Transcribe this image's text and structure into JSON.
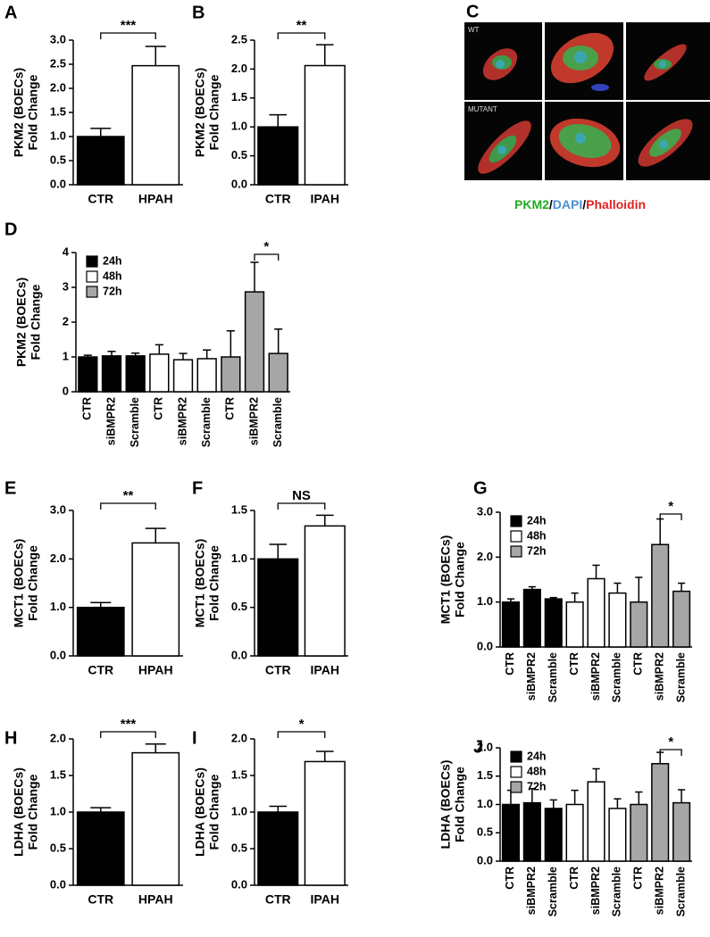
{
  "chart_data": [
    {
      "type": "bar",
      "label": "A",
      "ylabel": [
        "PKM2 (BOECs)",
        "Fold Change"
      ],
      "categories": [
        "CTR",
        "HPAH"
      ],
      "values": [
        1.0,
        2.47
      ],
      "errors": [
        0.17,
        0.4
      ],
      "colors": [
        "#000000",
        "#ffffff"
      ],
      "ylim": [
        0,
        3
      ],
      "yticks": [
        {
          "value": 0,
          "label": "0.0"
        },
        0.5,
        {
          "value": 1,
          "label": "1.0"
        },
        1.5,
        {
          "value": 2,
          "label": "2.0"
        },
        2.5,
        {
          "value": 3,
          "label": "3.0"
        }
      ],
      "significance": "***"
    },
    {
      "type": "bar",
      "label": "B",
      "ylabel": [
        "PKM2 (BOECs)",
        "Fold Change"
      ],
      "categories": [
        "CTR",
        "IPAH"
      ],
      "values": [
        1.0,
        2.06
      ],
      "errors": [
        0.21,
        0.36
      ],
      "colors": [
        "#000000",
        "#ffffff"
      ],
      "ylim": [
        0,
        2.5
      ],
      "yticks": [
        {
          "value": 0,
          "label": "0.0"
        },
        0.5,
        {
          "value": 1,
          "label": "1.0"
        },
        1.5,
        {
          "value": 2,
          "label": "2.0"
        },
        2.5
      ],
      "significance": "**"
    },
    {
      "type": "bar",
      "label": "D",
      "ylabel": [
        "PKM2 (BOECs)",
        "Fold Change"
      ],
      "categories": [
        "CTR",
        "siBMPR2",
        "Scramble",
        "CTR",
        "siBMPR2",
        "Scramble",
        "CTR",
        "siBMPR2",
        "Scramble"
      ],
      "series": [
        {
          "name": "24h",
          "color": "#000000",
          "values": [
            1.0,
            1.03,
            1.03,
            null,
            null,
            null,
            null,
            null,
            null
          ],
          "errors": [
            0.05,
            0.13,
            0.08,
            null,
            null,
            null,
            null,
            null,
            null
          ]
        },
        {
          "name": "48h",
          "color": "#ffffff",
          "values": [
            null,
            null,
            null,
            1.08,
            0.92,
            0.95,
            null,
            null,
            null
          ],
          "errors": [
            null,
            null,
            null,
            0.27,
            0.18,
            0.25,
            null,
            null,
            null
          ]
        },
        {
          "name": "72h",
          "color": "#a6a6a6",
          "values": [
            null,
            null,
            null,
            null,
            null,
            null,
            1.0,
            2.87,
            1.1
          ],
          "errors": [
            null,
            null,
            null,
            null,
            null,
            null,
            0.75,
            0.85,
            0.7
          ]
        }
      ],
      "legend": "upper left",
      "ylim": [
        0,
        4
      ],
      "yticks": [
        0,
        1,
        2,
        3,
        4
      ],
      "significance": "*"
    },
    {
      "type": "bar",
      "label": "E",
      "ylabel": [
        "MCT1 (BOECs)",
        "Fold Change"
      ],
      "categories": [
        "CTR",
        "HPAH"
      ],
      "values": [
        1.0,
        2.33
      ],
      "errors": [
        0.1,
        0.3
      ],
      "colors": [
        "#000000",
        "#ffffff"
      ],
      "ylim": [
        0,
        3
      ],
      "yticks": [
        {
          "value": 0,
          "label": "0.0"
        },
        {
          "value": 1,
          "label": "1.0"
        },
        {
          "value": 2,
          "label": "2.0"
        },
        {
          "value": 3,
          "label": "3.0"
        }
      ],
      "significance": "**"
    },
    {
      "type": "bar",
      "label": "F",
      "ylabel": [
        "MCT1 (BOECs)",
        "Fold Change"
      ],
      "categories": [
        "CTR",
        "IPAH"
      ],
      "values": [
        1.0,
        1.34
      ],
      "errors": [
        0.15,
        0.11
      ],
      "colors": [
        "#000000",
        "#ffffff"
      ],
      "ylim": [
        0,
        1.5
      ],
      "yticks": [
        {
          "value": 0,
          "label": "0.0"
        },
        0.5,
        {
          "value": 1,
          "label": "1.0"
        },
        1.5
      ],
      "significance": "NS"
    },
    {
      "type": "bar",
      "label": "G",
      "ylabel": [
        "MCT1 (BOECs)",
        "Fold Change"
      ],
      "categories": [
        "CTR",
        "siBMPR2",
        "Scramble",
        "CTR",
        "siBMPR2",
        "Scramble",
        "CTR",
        "siBMPR2",
        "Scramble"
      ],
      "series": [
        {
          "name": "24h",
          "color": "#000000",
          "values": [
            1.0,
            1.28,
            1.07,
            null,
            null,
            null,
            null,
            null,
            null
          ],
          "errors": [
            0.07,
            0.06,
            0.03,
            null,
            null,
            null,
            null,
            null,
            null
          ]
        },
        {
          "name": "48h",
          "color": "#ffffff",
          "values": [
            null,
            null,
            null,
            1.0,
            1.52,
            1.2,
            null,
            null,
            null
          ],
          "errors": [
            null,
            null,
            null,
            0.2,
            0.3,
            0.22,
            null,
            null,
            null
          ]
        },
        {
          "name": "72h",
          "color": "#a6a6a6",
          "values": [
            null,
            null,
            null,
            null,
            null,
            null,
            1.0,
            2.28,
            1.24
          ],
          "errors": [
            null,
            null,
            null,
            null,
            null,
            null,
            0.55,
            0.57,
            0.18
          ]
        }
      ],
      "legend": "upper left",
      "ylim": [
        0,
        3
      ],
      "yticks": [
        {
          "value": 0,
          "label": "0.0"
        },
        {
          "value": 1,
          "label": "1.0"
        },
        {
          "value": 2,
          "label": "2.0"
        },
        {
          "value": 3,
          "label": "3.0"
        }
      ],
      "significance": "*"
    },
    {
      "type": "bar",
      "label": "H",
      "ylabel": [
        "LDHA (BOECs)",
        "Fold Change"
      ],
      "categories": [
        "CTR",
        "HPAH"
      ],
      "values": [
        1.0,
        1.81
      ],
      "errors": [
        0.06,
        0.12
      ],
      "colors": [
        "#000000",
        "#ffffff"
      ],
      "ylim": [
        0,
        2
      ],
      "yticks": [
        {
          "value": 0,
          "label": "0.0"
        },
        0.5,
        {
          "value": 1,
          "label": "1.0"
        },
        1.5,
        {
          "value": 2,
          "label": "2.0"
        }
      ],
      "significance": "***"
    },
    {
      "type": "bar",
      "label": "I",
      "ylabel": [
        "LDHA (BOECs)",
        "Fold Change"
      ],
      "categories": [
        "CTR",
        "IPAH"
      ],
      "values": [
        1.0,
        1.69
      ],
      "errors": [
        0.08,
        0.14
      ],
      "colors": [
        "#000000",
        "#ffffff"
      ],
      "ylim": [
        0,
        2
      ],
      "yticks": [
        {
          "value": 0,
          "label": "0.0"
        },
        0.5,
        {
          "value": 1,
          "label": "1.0"
        },
        1.5,
        {
          "value": 2,
          "label": "2.0"
        }
      ],
      "significance": "*"
    },
    {
      "type": "bar",
      "label": "J",
      "ylabel": [
        "LDHA (BOECs)",
        "Fold Change"
      ],
      "categories": [
        "CTR",
        "siBMPR2",
        "Scramble",
        "CTR",
        "siBMPR2",
        "Scramble",
        "CTR",
        "siBMPR2",
        "Scramble"
      ],
      "series": [
        {
          "name": "24h",
          "color": "#000000",
          "values": [
            1.0,
            1.03,
            0.93,
            null,
            null,
            null,
            null,
            null,
            null
          ],
          "errors": [
            0.25,
            0.25,
            0.15,
            null,
            null,
            null,
            null,
            null,
            null
          ]
        },
        {
          "name": "48h",
          "color": "#ffffff",
          "values": [
            null,
            null,
            null,
            1.0,
            1.4,
            0.93,
            null,
            null,
            null
          ],
          "errors": [
            null,
            null,
            null,
            0.25,
            0.23,
            0.17,
            null,
            null,
            null
          ]
        },
        {
          "name": "72h",
          "color": "#a6a6a6",
          "values": [
            null,
            null,
            null,
            null,
            null,
            null,
            1.0,
            1.72,
            1.03
          ],
          "errors": [
            null,
            null,
            null,
            null,
            null,
            null,
            0.22,
            0.2,
            0.23
          ]
        }
      ],
      "legend": "upper left",
      "ylim": [
        0,
        2
      ],
      "yticks": [
        {
          "value": 0,
          "label": "0.0"
        },
        0.5,
        {
          "value": 1,
          "label": "1.0"
        },
        1.5,
        {
          "value": 2,
          "label": "2.0"
        }
      ],
      "significance": "*"
    }
  ],
  "image_panel": {
    "label": "C",
    "rows": [
      "WT",
      "MUTANT"
    ],
    "stains": [
      "PKM2",
      "DAPI",
      "Phalloidin"
    ],
    "separator": "/"
  }
}
